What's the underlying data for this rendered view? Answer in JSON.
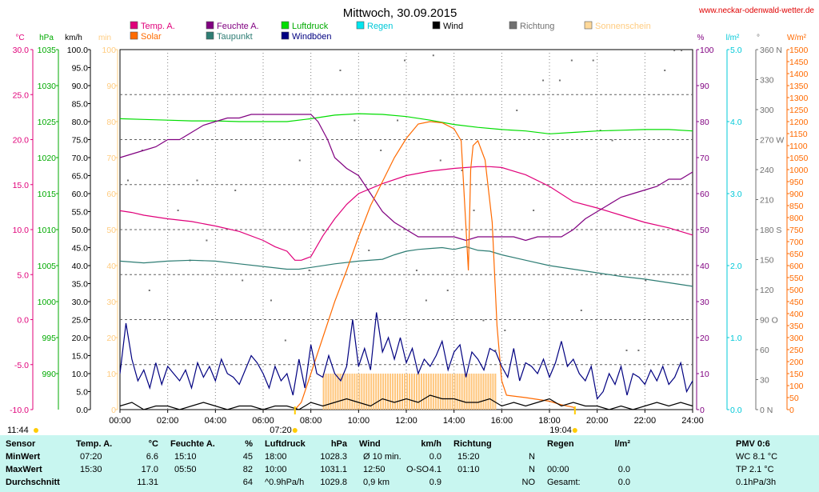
{
  "title": "Mittwoch, 30.09.2015",
  "site": "www.neckar-odenwald-wetter.de",
  "legend": [
    {
      "label": "Temp. A.",
      "color": "#e0007a",
      "text_color": "#e0007a"
    },
    {
      "label": "Feuchte A.",
      "color": "#800080",
      "text_color": "#800080"
    },
    {
      "label": "Luftdruck",
      "color": "#00dd00",
      "text_color": "#00aa00"
    },
    {
      "label": "Regen",
      "color": "#00e5ee",
      "text_color": "#00c8d8"
    },
    {
      "label": "Wind",
      "color": "#000000",
      "text_color": "#000000"
    },
    {
      "label": "Richtung",
      "color": "#707070",
      "text_color": "#707070"
    },
    {
      "label": "Sonnenschein",
      "color": "#ffd99a",
      "text_color": "#ffcc80"
    },
    {
      "label": "Solar",
      "color": "#ff6a00",
      "text_color": "#ff6a00"
    },
    {
      "label": "Taupunkt",
      "color": "#2e7d74",
      "text_color": "#2e7d74"
    },
    {
      "label": "Windböen",
      "color": "#000080",
      "text_color": "#000080"
    }
  ],
  "axis_units": {
    "temp": "°C",
    "pressure": "hPa",
    "wind": "km/h",
    "sun": "min",
    "humidity": "%",
    "rain": "l/m²",
    "direction": "°",
    "solar": "W/m²"
  },
  "markers": {
    "left_time": "11:44",
    "sunrise": "07:20",
    "sunset": "19:04"
  },
  "chart_data": {
    "type": "line",
    "x_range": [
      "00:00",
      "24:00"
    ],
    "x_ticks": [
      "00:00",
      "02:00",
      "04:00",
      "06:00",
      "08:00",
      "10:00",
      "12:00",
      "14:00",
      "16:00",
      "18:00",
      "20:00",
      "22:00",
      "24:00"
    ],
    "axes": {
      "temp": {
        "min": -10,
        "max": 30,
        "step": 5,
        "color": "#e0007a",
        "ticks": [
          "30.0",
          "25.0",
          "20.0",
          "15.0",
          "10.0",
          "5.0",
          "0.0",
          "-5.0",
          "-10.0"
        ]
      },
      "pressure": {
        "min": 990,
        "max": 1040,
        "step": 5,
        "color": "#00aa00",
        "ticks": [
          "1035",
          "1030",
          "1025",
          "1020",
          "1015",
          "1010",
          "1005",
          "1000",
          "995",
          "990"
        ]
      },
      "wind": {
        "min": 0,
        "max": 100,
        "step": 5,
        "color": "#000000",
        "ticks": [
          "100.0",
          "95.0",
          "90.0",
          "85.0",
          "80.0",
          "75.0",
          "70.0",
          "65.0",
          "60.0",
          "55.0",
          "50.0",
          "45.0",
          "40.0",
          "35.0",
          "30.0",
          "25.0",
          "20.0",
          "15.0",
          "10.0",
          "5.0",
          "0.0"
        ]
      },
      "sun": {
        "min": 0,
        "max": 100,
        "step": 10,
        "color": "#ffcc80",
        "ticks": [
          "100",
          "90",
          "80",
          "70",
          "60",
          "50",
          "40",
          "30",
          "20",
          "10",
          "0"
        ]
      },
      "humidity": {
        "min": 0,
        "max": 100,
        "step": 10,
        "color": "#800080",
        "ticks": [
          "100",
          "90",
          "80",
          "70",
          "60",
          "50",
          "40",
          "30",
          "20",
          "10",
          "0"
        ]
      },
      "rain": {
        "min": 0,
        "max": 5,
        "step": 1,
        "color": "#00c8d8",
        "ticks": [
          "5.0",
          "4.0",
          "3.0",
          "2.0",
          "1.0",
          "0.0"
        ]
      },
      "direction": {
        "min": 0,
        "max": 360,
        "step": 30,
        "color": "#707070",
        "ticks": [
          "360 N",
          "330",
          "300",
          "270 W",
          "240",
          "210",
          "180 S",
          "150",
          "120",
          "90 O",
          "60",
          "30",
          "0 N"
        ]
      },
      "solar": {
        "min": 0,
        "max": 1500,
        "step": 50,
        "color": "#ff6a00",
        "ticks": [
          "1500",
          "1450",
          "1400",
          "1350",
          "1300",
          "1250",
          "1200",
          "1150",
          "1100",
          "1050",
          "1000",
          "950",
          "900",
          "850",
          "800",
          "750",
          "700",
          "650",
          "600",
          "550",
          "500",
          "450",
          "400",
          "350",
          "300",
          "250",
          "200",
          "150",
          "100",
          "50",
          "0"
        ]
      }
    },
    "series": [
      {
        "name": "Temp. A.",
        "axis": "temp",
        "x": [
          0,
          0.5,
          1,
          2,
          3,
          4,
          5,
          6,
          6.5,
          7,
          7.33,
          7.6,
          8,
          8.5,
          9,
          9.5,
          10,
          11,
          12,
          13,
          14,
          15,
          15.5,
          16,
          17,
          18,
          19,
          20,
          21,
          22,
          23,
          24
        ],
        "y": [
          12.1,
          11.9,
          11.6,
          11.2,
          10.9,
          10.4,
          9.8,
          8.8,
          8.1,
          7.6,
          6.6,
          6.6,
          7.0,
          9.3,
          11.2,
          12.8,
          14.0,
          15.1,
          16.0,
          16.5,
          16.8,
          17.0,
          17.0,
          16.9,
          16.1,
          14.8,
          13.1,
          12.4,
          11.6,
          10.8,
          10.2,
          9.4
        ]
      },
      {
        "name": "Feuchte A.",
        "axis": "humidity",
        "x": [
          0,
          0.5,
          1,
          1.5,
          2,
          2.5,
          3,
          3.5,
          4,
          4.5,
          5,
          5.5,
          5.83,
          6,
          6.5,
          7,
          7.5,
          8,
          8.3,
          8.7,
          9,
          9.5,
          10,
          10.5,
          11,
          11.5,
          12,
          12.5,
          13,
          13.5,
          14,
          14.5,
          15,
          15.5,
          16,
          16.5,
          17,
          17.5,
          18,
          18.5,
          19,
          19.5,
          20,
          20.5,
          21,
          21.5,
          22,
          22.5,
          23,
          23.5,
          24
        ],
        "y": [
          70,
          71,
          72,
          73,
          75,
          75,
          77,
          79,
          80,
          81,
          81,
          82,
          82,
          82,
          82,
          82,
          82,
          82,
          80,
          75,
          70,
          67,
          65,
          60,
          55,
          52,
          50,
          48,
          48,
          48,
          48,
          47,
          48,
          48,
          48,
          48,
          47,
          48,
          48,
          48,
          50,
          53,
          55,
          57,
          59,
          60,
          61,
          62,
          64,
          64,
          66
        ]
      },
      {
        "name": "Luftdruck",
        "axis": "pressure",
        "x": [
          0,
          1,
          2,
          3,
          4,
          5,
          6,
          7,
          8,
          9,
          10,
          11,
          12,
          13,
          14,
          15,
          16,
          17,
          18,
          19,
          20,
          21,
          22,
          23,
          24
        ],
        "y": [
          1030.4,
          1030.3,
          1030.2,
          1030.1,
          1030.1,
          1030.0,
          1030.0,
          1030.0,
          1030.4,
          1030.9,
          1031.1,
          1031.0,
          1030.7,
          1030.2,
          1029.6,
          1029.2,
          1028.9,
          1028.7,
          1028.3,
          1028.5,
          1028.7,
          1028.8,
          1028.9,
          1028.9,
          1028.7
        ]
      },
      {
        "name": "Taupunkt",
        "axis": "temp",
        "x": [
          0,
          1,
          2,
          3,
          4,
          5,
          6,
          7,
          7.5,
          8,
          9,
          10,
          11,
          11.5,
          12,
          12.5,
          13,
          13.5,
          14,
          14.5,
          15,
          15.5,
          16,
          17,
          18,
          19,
          20,
          21,
          22,
          23,
          24
        ],
        "y": [
          6.5,
          6.3,
          6.5,
          6.6,
          6.5,
          6.2,
          5.9,
          5.6,
          5.6,
          5.8,
          6.2,
          6.5,
          6.7,
          7.2,
          7.6,
          7.8,
          7.9,
          8.0,
          7.8,
          8.1,
          7.7,
          7.6,
          7.2,
          6.6,
          6.0,
          5.6,
          5.2,
          4.8,
          4.5,
          4.1,
          3.7
        ]
      },
      {
        "name": "Solar",
        "axis": "solar",
        "x": [
          7.33,
          7.6,
          8,
          8.5,
          9,
          9.5,
          10,
          10.5,
          11,
          11.5,
          12,
          12.5,
          13,
          13.5,
          14,
          14.3,
          14.6,
          14.7,
          14.8,
          15,
          15.3,
          15.6,
          15.8,
          16,
          16.2,
          17,
          18,
          18.5,
          19,
          19.1
        ],
        "y": [
          0,
          30,
          150,
          300,
          450,
          580,
          720,
          850,
          950,
          1050,
          1130,
          1190,
          1200,
          1195,
          1170,
          1120,
          580,
          1000,
          1100,
          1120,
          1040,
          780,
          350,
          120,
          60,
          50,
          35,
          20,
          10,
          0
        ]
      },
      {
        "name": "Windböen",
        "axis": "wind",
        "x": [
          0,
          0.25,
          0.5,
          0.75,
          1,
          1.25,
          1.5,
          1.75,
          2,
          2.25,
          2.5,
          2.75,
          3,
          3.25,
          3.5,
          3.75,
          4,
          4.25,
          4.5,
          4.75,
          5,
          5.25,
          5.5,
          5.75,
          6,
          6.25,
          6.5,
          6.75,
          7,
          7.25,
          7.5,
          7.75,
          8,
          8.25,
          8.5,
          8.75,
          9,
          9.25,
          9.5,
          9.75,
          10,
          10.25,
          10.5,
          10.75,
          11,
          11.25,
          11.5,
          11.75,
          12,
          12.25,
          12.5,
          12.75,
          13,
          13.25,
          13.5,
          13.75,
          14,
          14.25,
          14.5,
          14.75,
          15,
          15.25,
          15.5,
          15.75,
          16,
          16.25,
          16.5,
          16.75,
          17,
          17.25,
          17.5,
          17.75,
          18,
          18.25,
          18.5,
          18.75,
          19,
          19.25,
          19.5,
          19.75,
          20,
          20.25,
          20.5,
          20.75,
          21,
          21.25,
          21.5,
          21.75,
          22,
          22.25,
          22.5,
          22.75,
          23,
          23.25,
          23.5,
          23.75,
          24
        ],
        "y": [
          10,
          24,
          14,
          8,
          11,
          6,
          13,
          7,
          12,
          10,
          8,
          11,
          6,
          13,
          9,
          12,
          8,
          14,
          10,
          9,
          7,
          11,
          15,
          13,
          10,
          6,
          12,
          8,
          10,
          4,
          14,
          6,
          18,
          10,
          9,
          15,
          10,
          8,
          12,
          25,
          12,
          17,
          11,
          27,
          16,
          20,
          14,
          20,
          13,
          17,
          10,
          14,
          12,
          15,
          19,
          11,
          16,
          18,
          9,
          16,
          14,
          11,
          17,
          16,
          12,
          9,
          17,
          8,
          13,
          12,
          10,
          14,
          9,
          13,
          19,
          12,
          14,
          10,
          8,
          12,
          3,
          5,
          10,
          7,
          12,
          4,
          10,
          9,
          7,
          11,
          8,
          12,
          7,
          9,
          13,
          5,
          8
        ]
      },
      {
        "name": "Wind",
        "axis": "wind",
        "x": [
          0,
          0.5,
          1,
          1.5,
          2,
          2.5,
          3,
          3.5,
          4,
          4.5,
          5,
          5.5,
          6,
          6.5,
          7,
          7.5,
          8,
          8.5,
          9,
          9.5,
          10,
          10.5,
          11,
          11.5,
          12,
          12.5,
          13,
          13.5,
          14,
          14.5,
          15,
          15.5,
          16,
          16.5,
          17,
          17.5,
          18,
          18.5,
          19,
          19.5,
          20,
          20.5,
          21,
          21.5,
          22,
          22.5,
          23,
          23.5,
          24
        ],
        "y": [
          1,
          2,
          0,
          1,
          1,
          0,
          1,
          2,
          1,
          0,
          1,
          1,
          0,
          1,
          1,
          0,
          2,
          1,
          2,
          3,
          2,
          1,
          3,
          2,
          3,
          2,
          4,
          3,
          3,
          2,
          2,
          3,
          1,
          2,
          1,
          2,
          3,
          1,
          2,
          1,
          1,
          0,
          1,
          0,
          1,
          2,
          1,
          2,
          1
        ]
      },
      {
        "name": "Sonnenschein",
        "axis": "sun",
        "type": "bar",
        "x_range": [
          8.5,
          15.75
        ],
        "value": 10
      },
      {
        "name": "Richtung",
        "axis": "direction",
        "type": "scatter",
        "x": [
          0.3,
          1.2,
          2.4,
          3.6,
          5.1,
          6.3,
          7.5,
          9.2,
          10.4,
          11.6,
          12.4,
          13.1,
          13.7,
          14.3,
          15.2,
          16.6,
          17.3,
          18.4,
          19.3,
          20.1,
          21.2,
          22.0,
          22.8,
          23.5,
          0.9,
          2.9,
          4.8,
          6.9,
          8.5,
          10.9,
          11.9,
          12.8,
          14.8,
          16.1,
          17.7,
          19.8,
          21.7,
          23.2,
          3.2,
          7.9,
          9.8,
          13.4,
          15.7,
          18.9,
          20.6
        ],
        "y": [
          230,
          120,
          200,
          170,
          130,
          110,
          250,
          340,
          160,
          290,
          140,
          355,
          120,
          240,
          90,
          300,
          200,
          330,
          100,
          280,
          60,
          130,
          340,
          360,
          260,
          150,
          220,
          70,
          180,
          260,
          350,
          110,
          200,
          80,
          330,
          350,
          60,
          360,
          230,
          140,
          290,
          250,
          60,
          350,
          270
        ]
      }
    ]
  },
  "stats": {
    "headers": [
      "Sensor",
      "Temp. A.",
      "°C",
      "Feuchte A.",
      "%",
      "Luftdruck",
      "hPa",
      "Wind",
      "km/h",
      "Richtung",
      "Regen",
      "l/m²",
      "PMV 0:6"
    ],
    "rows": [
      {
        "label": "MinWert",
        "temp_time": "07:20",
        "temp_val": "6.6",
        "hum_time": "15:10",
        "hum_val": "45",
        "press_time": "18:00",
        "press_val": "1028.3",
        "wind_label": "Ø 10 min.",
        "wind_val": "0.0",
        "dir_time": "15:20",
        "dir_val": "N",
        "rain_time": "",
        "rain_val": "",
        "pmv": "WC 8.1 °C"
      },
      {
        "label": "MaxWert",
        "temp_time": "15:30",
        "temp_val": "17.0",
        "hum_time": "05:50",
        "hum_val": "82",
        "press_time": "10:00",
        "press_val": "1031.1",
        "wind_label": "12:50",
        "wind_dir": "O-SO",
        "wind_val": "4.1",
        "dir_time": "01:10",
        "dir_val": "N",
        "rain_time": "00:00",
        "rain_val": "0.0",
        "pmv": "TP 2.1 °C"
      },
      {
        "label": "Durchschnitt",
        "temp_time": "",
        "temp_val": "11.31",
        "hum_time": "",
        "hum_val": "64",
        "press_time": "^0.9hPa/h",
        "press_val": "1029.8",
        "wind_label": "0,9 km",
        "wind_val": "0.9",
        "dir_time": "",
        "dir_val": "NO",
        "rain_time": "Gesamt:",
        "rain_val": "0.0",
        "pmv": "0.1hPa/3h"
      }
    ]
  }
}
